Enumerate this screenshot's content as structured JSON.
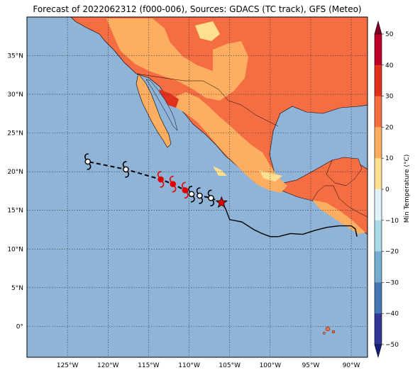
{
  "title": "Forecast of 2022062312 (f000-006), Sources: GDACS (TC track), GFS (Meteo)",
  "map": {
    "lon_range": [
      -130,
      -88
    ],
    "lat_range": [
      -4,
      40
    ],
    "lon_ticks": [
      -125,
      -120,
      -115,
      -110,
      -105,
      -100,
      -95,
      -90
    ],
    "lon_tick_labels": [
      "125°W",
      "120°W",
      "115°W",
      "110°W",
      "105°W",
      "100°W",
      "95°W",
      "90°W"
    ],
    "lat_ticks": [
      0,
      5,
      10,
      15,
      20,
      25,
      30,
      35
    ],
    "lat_tick_labels": [
      "0°",
      "5°N",
      "10°N",
      "15°N",
      "20°N",
      "25°N",
      "30°N",
      "35°N"
    ],
    "ocean_color": "#8fb4d8",
    "grid": true
  },
  "colorbar": {
    "label": "Min Temperature (°C)",
    "ticks": [
      50,
      40,
      30,
      20,
      10,
      0,
      -10,
      -20,
      -30,
      -40,
      -50
    ],
    "tick_labels": [
      "50",
      "40",
      "30",
      "20",
      "10",
      "0",
      "−10",
      "−20",
      "−30",
      "−40",
      "−50"
    ],
    "colors_top_to_bottom": [
      "#800026",
      "#bd0026",
      "#e0311d",
      "#f46d43",
      "#fdae61",
      "#fee090",
      "#e0f3f8",
      "#abd9e9",
      "#74add1",
      "#4575b4",
      "#313695",
      "#1b1d7a"
    ]
  },
  "track": {
    "past_track": [
      [
        -106,
        16
      ],
      [
        -105.5,
        15.2
      ],
      [
        -105,
        13.8
      ],
      [
        -103.5,
        13.5
      ],
      [
        -102,
        12.5
      ],
      [
        -101,
        12.0
      ],
      [
        -100,
        11.6
      ],
      [
        -99,
        11.6
      ],
      [
        -97.5,
        12.0
      ],
      [
        -96,
        11.9
      ],
      [
        -94.5,
        12.4
      ],
      [
        -93,
        12.8
      ],
      [
        -91.5,
        13.0
      ],
      [
        -90,
        13.0
      ],
      [
        -89.5,
        12.6
      ],
      [
        -89.3,
        11.6
      ]
    ],
    "current_position": [
      -106,
      16
    ],
    "forecast_points": [
      {
        "lon": -107.3,
        "lat": 16.6,
        "color": "#000000"
      },
      {
        "lon": -108.7,
        "lat": 16.9,
        "color": "#000000"
      },
      {
        "lon": -109.7,
        "lat": 17.1,
        "color": "#000000"
      },
      {
        "lon": -110.5,
        "lat": 17.6,
        "color": "#e00000"
      },
      {
        "lon": -112,
        "lat": 18.4,
        "color": "#e00000"
      },
      {
        "lon": -113.5,
        "lat": 19,
        "color": "#e00000"
      },
      {
        "lon": -117.8,
        "lat": 20.3,
        "color": "#000000"
      },
      {
        "lon": -122.5,
        "lat": 21.3,
        "color": "#000000"
      }
    ]
  }
}
